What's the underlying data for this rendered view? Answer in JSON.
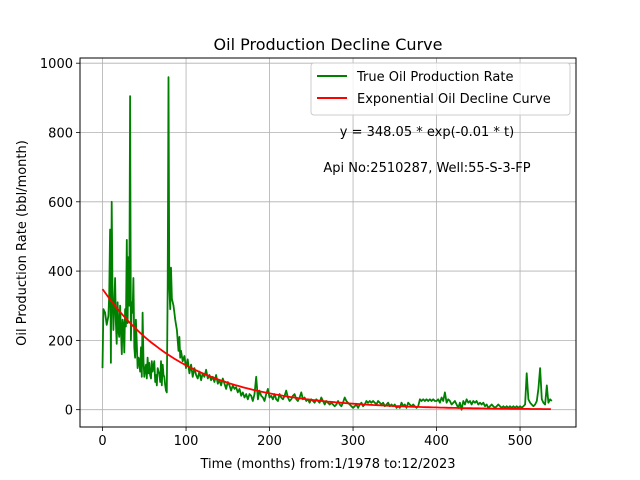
{
  "chart_data": {
    "type": "line",
    "title": "Oil Production Decline Curve",
    "xlabel": "Time (months) from:1/1978 to:12/2023",
    "ylabel": "Oil Production Rate (bbl/month)",
    "xlim": [
      -27,
      567
    ],
    "ylim": [
      -50,
      1015
    ],
    "xticks": [
      0,
      100,
      200,
      300,
      400,
      500
    ],
    "yticks": [
      0,
      200,
      400,
      600,
      800,
      1000
    ],
    "grid": true,
    "legend_position": "upper right",
    "annotations": [
      "y = 348.05 * exp(-0.01 * t)",
      "Api No:2510287, Well:55-S-3-FP"
    ],
    "series": [
      {
        "name": "True Oil Production Rate",
        "color": "#008000",
        "points": [
          [
            0,
            120
          ],
          [
            1,
            290
          ],
          [
            3,
            280
          ],
          [
            5,
            245
          ],
          [
            7,
            270
          ],
          [
            8,
            330
          ],
          [
            9,
            520
          ],
          [
            10,
            135
          ],
          [
            11,
            600
          ],
          [
            12,
            320
          ],
          [
            13,
            230
          ],
          [
            14,
            300
          ],
          [
            15,
            380
          ],
          [
            16,
            250
          ],
          [
            17,
            190
          ],
          [
            18,
            310
          ],
          [
            19,
            230
          ],
          [
            20,
            210
          ],
          [
            21,
            300
          ],
          [
            22,
            235
          ],
          [
            23,
            160
          ],
          [
            24,
            260
          ],
          [
            25,
            245
          ],
          [
            26,
            165
          ],
          [
            27,
            290
          ],
          [
            28,
            240
          ],
          [
            29,
            490
          ],
          [
            30,
            250
          ],
          [
            31,
            440
          ],
          [
            32,
            300
          ],
          [
            33,
            905
          ],
          [
            34,
            200
          ],
          [
            35,
            310
          ],
          [
            36,
            280
          ],
          [
            37,
            380
          ],
          [
            38,
            180
          ],
          [
            39,
            150
          ],
          [
            40,
            260
          ],
          [
            41,
            190
          ],
          [
            42,
            120
          ],
          [
            43,
            150
          ],
          [
            44,
            140
          ],
          [
            45,
            110
          ],
          [
            46,
            180
          ],
          [
            47,
            95
          ],
          [
            48,
            280
          ],
          [
            49,
            140
          ],
          [
            50,
            95
          ],
          [
            51,
            115
          ],
          [
            52,
            130
          ],
          [
            53,
            90
          ],
          [
            54,
            150
          ],
          [
            55,
            105
          ],
          [
            56,
            135
          ],
          [
            57,
            100
          ],
          [
            58,
            90
          ],
          [
            59,
            140
          ],
          [
            60,
            110
          ],
          [
            62,
            140
          ],
          [
            63,
            80
          ],
          [
            64,
            100
          ],
          [
            65,
            70
          ],
          [
            66,
            120
          ],
          [
            67,
            110
          ],
          [
            68,
            105
          ],
          [
            69,
            80
          ],
          [
            70,
            140
          ],
          [
            71,
            70
          ],
          [
            72,
            130
          ],
          [
            73,
            100
          ],
          [
            74,
            95
          ],
          [
            75,
            70
          ],
          [
            76,
            55
          ],
          [
            77,
            50
          ],
          [
            78,
            360
          ],
          [
            79,
            960
          ],
          [
            80,
            360
          ],
          [
            81,
            290
          ],
          [
            82,
            410
          ],
          [
            83,
            320
          ],
          [
            85,
            300
          ],
          [
            86,
            280
          ],
          [
            87,
            260
          ],
          [
            89,
            230
          ],
          [
            90,
            200
          ],
          [
            91,
            170
          ],
          [
            92,
            210
          ],
          [
            93,
            150
          ],
          [
            94,
            170
          ],
          [
            96,
            140
          ],
          [
            98,
            155
          ],
          [
            100,
            120
          ],
          [
            102,
            145
          ],
          [
            104,
            105
          ],
          [
            106,
            130
          ],
          [
            108,
            95
          ],
          [
            110,
            120
          ],
          [
            112,
            100
          ],
          [
            114,
            90
          ],
          [
            116,
            110
          ],
          [
            118,
            85
          ],
          [
            120,
            105
          ],
          [
            122,
            95
          ],
          [
            124,
            115
          ],
          [
            126,
            90
          ],
          [
            128,
            100
          ],
          [
            130,
            85
          ],
          [
            132,
            95
          ],
          [
            134,
            80
          ],
          [
            136,
            100
          ],
          [
            138,
            75
          ],
          [
            140,
            85
          ],
          [
            142,
            70
          ],
          [
            144,
            90
          ],
          [
            146,
            75
          ],
          [
            148,
            60
          ],
          [
            150,
            80
          ],
          [
            152,
            70
          ],
          [
            154,
            55
          ],
          [
            156,
            70
          ],
          [
            158,
            60
          ],
          [
            160,
            65
          ],
          [
            162,
            50
          ],
          [
            164,
            60
          ],
          [
            166,
            40
          ],
          [
            168,
            50
          ],
          [
            170,
            35
          ],
          [
            172,
            45
          ],
          [
            174,
            30
          ],
          [
            176,
            45
          ],
          [
            178,
            40
          ],
          [
            180,
            25
          ],
          [
            182,
            45
          ],
          [
            184,
            95
          ],
          [
            186,
            30
          ],
          [
            188,
            55
          ],
          [
            190,
            40
          ],
          [
            192,
            35
          ],
          [
            194,
            25
          ],
          [
            196,
            45
          ],
          [
            198,
            60
          ],
          [
            200,
            35
          ],
          [
            202,
            40
          ],
          [
            204,
            30
          ],
          [
            206,
            45
          ],
          [
            208,
            30
          ],
          [
            210,
            25
          ],
          [
            212,
            45
          ],
          [
            214,
            35
          ],
          [
            216,
            30
          ],
          [
            218,
            40
          ],
          [
            220,
            55
          ],
          [
            222,
            35
          ],
          [
            224,
            25
          ],
          [
            226,
            30
          ],
          [
            228,
            40
          ],
          [
            230,
            45
          ],
          [
            232,
            30
          ],
          [
            234,
            25
          ],
          [
            236,
            35
          ],
          [
            238,
            50
          ],
          [
            240,
            30
          ],
          [
            242,
            35
          ],
          [
            244,
            25
          ],
          [
            246,
            30
          ],
          [
            248,
            20
          ],
          [
            250,
            30
          ],
          [
            252,
            25
          ],
          [
            254,
            20
          ],
          [
            256,
            30
          ],
          [
            258,
            25
          ],
          [
            260,
            20
          ],
          [
            262,
            35
          ],
          [
            264,
            25
          ],
          [
            266,
            15
          ],
          [
            268,
            25
          ],
          [
            270,
            20
          ],
          [
            272,
            15
          ],
          [
            274,
            20
          ],
          [
            276,
            15
          ],
          [
            278,
            10
          ],
          [
            280,
            15
          ],
          [
            282,
            25
          ],
          [
            284,
            15
          ],
          [
            286,
            10
          ],
          [
            288,
            20
          ],
          [
            290,
            35
          ],
          [
            292,
            25
          ],
          [
            294,
            20
          ],
          [
            296,
            15
          ],
          [
            298,
            10
          ],
          [
            300,
            5
          ],
          [
            302,
            10
          ],
          [
            304,
            15
          ],
          [
            306,
            5
          ],
          [
            308,
            15
          ],
          [
            310,
            20
          ],
          [
            312,
            10
          ],
          [
            314,
            15
          ],
          [
            316,
            25
          ],
          [
            318,
            20
          ],
          [
            320,
            25
          ],
          [
            322,
            20
          ],
          [
            324,
            25
          ],
          [
            326,
            20
          ],
          [
            328,
            15
          ],
          [
            330,
            25
          ],
          [
            332,
            20
          ],
          [
            334,
            15
          ],
          [
            336,
            20
          ],
          [
            338,
            10
          ],
          [
            340,
            15
          ],
          [
            342,
            20
          ],
          [
            344,
            10
          ],
          [
            346,
            15
          ],
          [
            348,
            10
          ],
          [
            350,
            15
          ],
          [
            352,
            5
          ],
          [
            354,
            10
          ],
          [
            356,
            5
          ],
          [
            358,
            20
          ],
          [
            360,
            10
          ],
          [
            362,
            15
          ],
          [
            364,
            5
          ],
          [
            366,
            20
          ],
          [
            368,
            15
          ],
          [
            370,
            10
          ],
          [
            372,
            15
          ],
          [
            374,
            10
          ],
          [
            376,
            5
          ],
          [
            378,
            10
          ],
          [
            380,
            30
          ],
          [
            382,
            25
          ],
          [
            384,
            30
          ],
          [
            386,
            25
          ],
          [
            388,
            30
          ],
          [
            390,
            25
          ],
          [
            392,
            30
          ],
          [
            394,
            25
          ],
          [
            396,
            30
          ],
          [
            398,
            25
          ],
          [
            400,
            25
          ],
          [
            402,
            30
          ],
          [
            404,
            20
          ],
          [
            406,
            35
          ],
          [
            408,
            25
          ],
          [
            410,
            50
          ],
          [
            412,
            20
          ],
          [
            414,
            30
          ],
          [
            416,
            25
          ],
          [
            418,
            15
          ],
          [
            420,
            20
          ],
          [
            422,
            25
          ],
          [
            424,
            15
          ],
          [
            426,
            5
          ],
          [
            428,
            20
          ],
          [
            430,
            0
          ],
          [
            432,
            25
          ],
          [
            434,
            15
          ],
          [
            436,
            30
          ],
          [
            438,
            20
          ],
          [
            440,
            25
          ],
          [
            442,
            15
          ],
          [
            444,
            25
          ],
          [
            446,
            20
          ],
          [
            448,
            25
          ],
          [
            450,
            15
          ],
          [
            452,
            20
          ],
          [
            454,
            15
          ],
          [
            456,
            20
          ],
          [
            458,
            10
          ],
          [
            460,
            15
          ],
          [
            462,
            5
          ],
          [
            464,
            10
          ],
          [
            466,
            15
          ],
          [
            468,
            10
          ],
          [
            470,
            5
          ],
          [
            472,
            10
          ],
          [
            474,
            15
          ],
          [
            476,
            10
          ],
          [
            478,
            5
          ],
          [
            480,
            10
          ],
          [
            482,
            5
          ],
          [
            484,
            10
          ],
          [
            486,
            5
          ],
          [
            488,
            10
          ],
          [
            490,
            5
          ],
          [
            492,
            10
          ],
          [
            494,
            5
          ],
          [
            496,
            10
          ],
          [
            498,
            5
          ],
          [
            500,
            10
          ],
          [
            502,
            5
          ],
          [
            504,
            10
          ],
          [
            506,
            15
          ],
          [
            508,
            105
          ],
          [
            510,
            30
          ],
          [
            512,
            20
          ],
          [
            514,
            15
          ],
          [
            516,
            10
          ],
          [
            518,
            15
          ],
          [
            520,
            25
          ],
          [
            522,
            60
          ],
          [
            524,
            120
          ],
          [
            526,
            30
          ],
          [
            528,
            20
          ],
          [
            530,
            15
          ],
          [
            532,
            70
          ],
          [
            534,
            20
          ],
          [
            536,
            30
          ],
          [
            538,
            25
          ]
        ]
      },
      {
        "name": "Exponential Oil Decline Curve",
        "color": "#ff0000",
        "a": 348.05,
        "b": -0.01,
        "domain": [
          0,
          539
        ]
      }
    ]
  }
}
